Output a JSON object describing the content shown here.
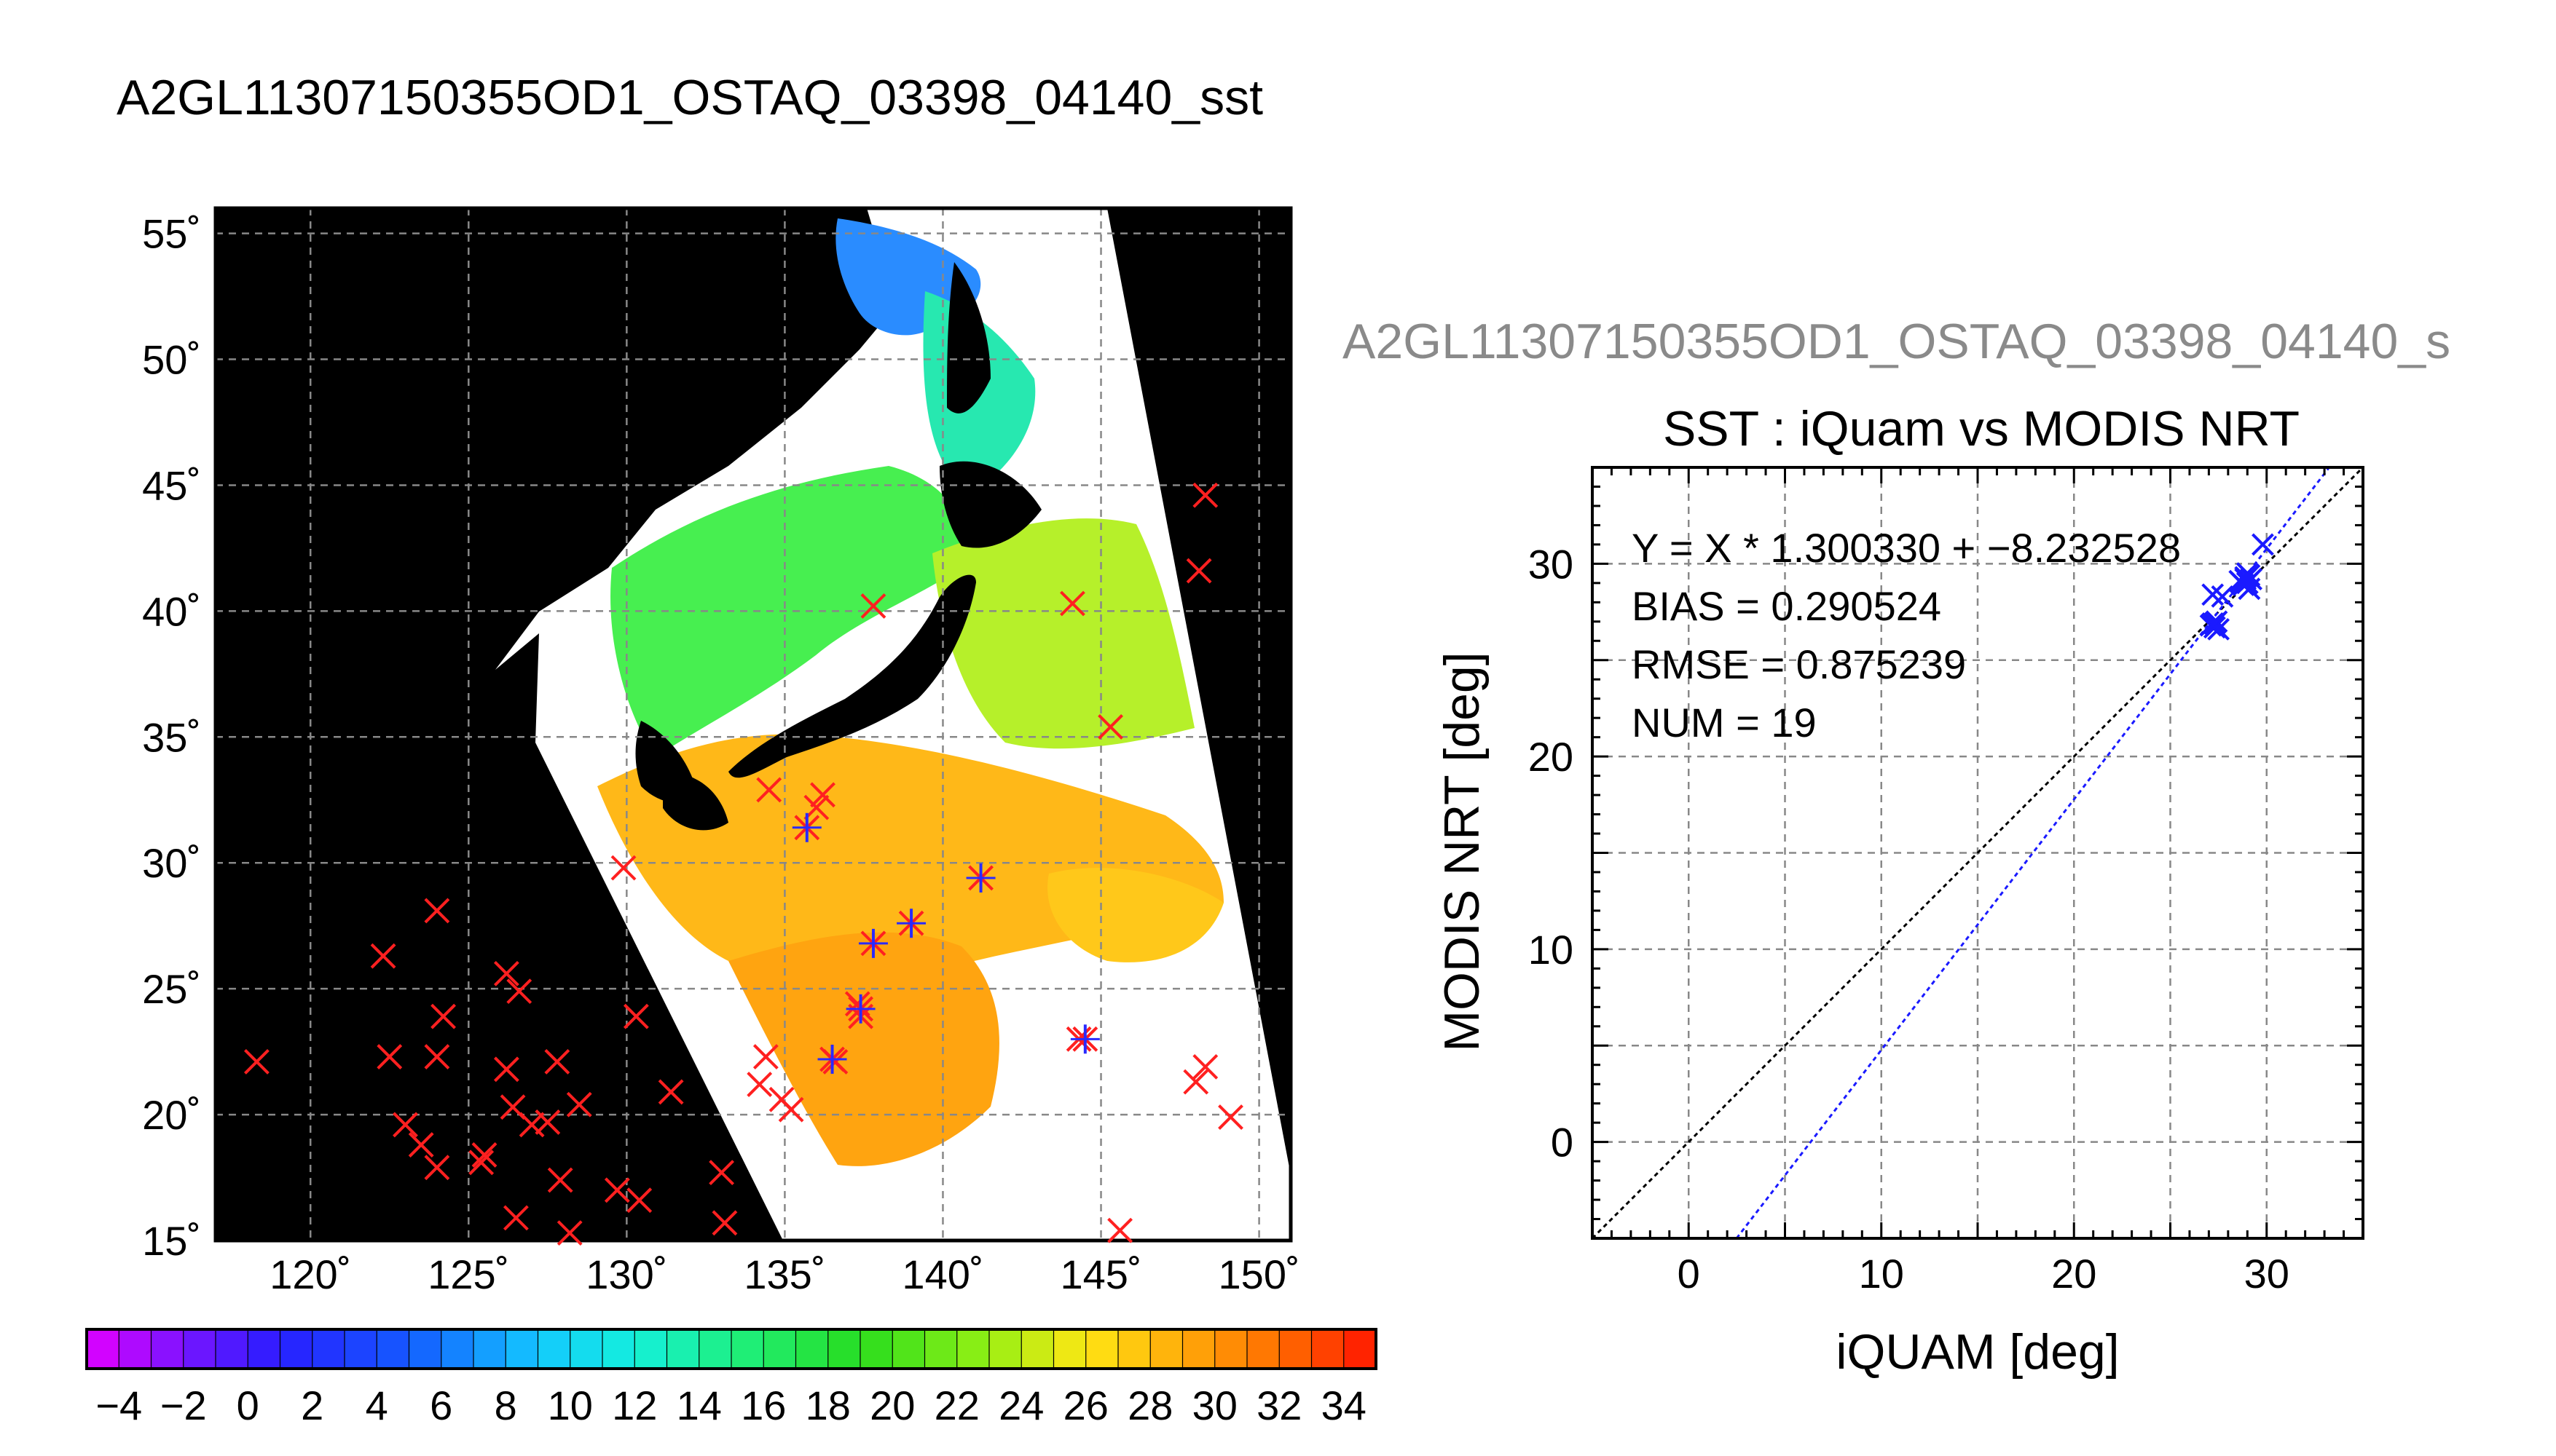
{
  "title": "A2GL11307150355OD1_OSTAQ_03398_04140_sst",
  "scatter_subtitle": "A2GL11307150355OD1_OSTAQ_03398_04140_s",
  "colors": {
    "land": "#000000",
    "no_data": "#ffffff",
    "grid": "#888888",
    "marker_red": "#ff2020",
    "marker_blue": "#2a2aff",
    "one_to_one": "#000000",
    "fit_line": "#1a1aff"
  },
  "chart_data": [
    {
      "type": "heatmap",
      "description_kind": "map",
      "xlim": [
        117,
        151
      ],
      "ylim": [
        15,
        56
      ],
      "x_ticks": [
        120,
        125,
        130,
        135,
        140,
        145,
        150
      ],
      "y_ticks": [
        15,
        20,
        25,
        30,
        35,
        40,
        45,
        50,
        55
      ],
      "x_tick_labels": [
        "120˚",
        "125˚",
        "130˚",
        "135˚",
        "140˚",
        "145˚",
        "150˚"
      ],
      "y_tick_labels": [
        "15˚",
        "20˚",
        "25˚",
        "30˚",
        "35˚",
        "40˚",
        "45˚",
        "50˚",
        "55˚"
      ],
      "grid": true,
      "colorbar": {
        "min": -5,
        "max": 35,
        "tick_labels": [
          "−4",
          "−2",
          "0",
          "2",
          "4",
          "6",
          "8",
          "10",
          "12",
          "14",
          "16",
          "18",
          "20",
          "22",
          "24",
          "26",
          "28",
          "30",
          "32",
          "34"
        ],
        "tick_values": [
          -4,
          -2,
          0,
          2,
          4,
          6,
          8,
          10,
          12,
          14,
          16,
          18,
          20,
          22,
          24,
          26,
          28,
          30,
          32,
          34
        ]
      },
      "matchups_red": [
        [
          118.3,
          22.1
        ],
        [
          122.3,
          26.3
        ],
        [
          122.5,
          22.3
        ],
        [
          124.0,
          28.1
        ],
        [
          124.2,
          23.9
        ],
        [
          124.0,
          22.3
        ],
        [
          123.0,
          19.6
        ],
        [
          123.5,
          18.8
        ],
        [
          124.0,
          17.9
        ],
        [
          125.5,
          18.4
        ],
        [
          125.4,
          18.1
        ],
        [
          126.2,
          25.6
        ],
        [
          126.6,
          24.9
        ],
        [
          126.2,
          21.8
        ],
        [
          126.4,
          20.3
        ],
        [
          127.0,
          19.6
        ],
        [
          127.5,
          19.7
        ],
        [
          127.8,
          22.1
        ],
        [
          127.9,
          17.4
        ],
        [
          128.5,
          20.4
        ],
        [
          126.5,
          15.9
        ],
        [
          128.2,
          15.3
        ],
        [
          129.7,
          17.0
        ],
        [
          130.4,
          16.6
        ],
        [
          130.3,
          23.9
        ],
        [
          131.4,
          20.9
        ],
        [
          133.0,
          17.7
        ],
        [
          133.1,
          15.7
        ],
        [
          134.4,
          22.3
        ],
        [
          134.2,
          21.2
        ],
        [
          134.9,
          20.6
        ],
        [
          135.2,
          20.2
        ],
        [
          134.5,
          32.9
        ],
        [
          136.2,
          32.7
        ],
        [
          136.0,
          32.2
        ],
        [
          129.9,
          29.8
        ],
        [
          137.8,
          40.2
        ],
        [
          144.1,
          40.3
        ],
        [
          145.3,
          35.4
        ],
        [
          148.3,
          44.6
        ],
        [
          148.1,
          41.6
        ],
        [
          148.0,
          21.3
        ],
        [
          148.3,
          21.9
        ],
        [
          149.1,
          19.9
        ],
        [
          145.6,
          15.4
        ],
        [
          137.3,
          24.4
        ],
        [
          137.4,
          23.9
        ],
        [
          136.6,
          22.1
        ],
        [
          144.3,
          23.0
        ]
      ],
      "matchups_star": [
        [
          135.7,
          31.4
        ],
        [
          141.2,
          29.4
        ],
        [
          137.8,
          26.8
        ],
        [
          139.0,
          27.6
        ],
        [
          137.4,
          24.2
        ],
        [
          144.5,
          23.0
        ],
        [
          136.5,
          22.2
        ]
      ]
    },
    {
      "type": "scatter",
      "title": "SST : iQuam vs MODIS NRT",
      "xlabel": "iQUAM [deg]",
      "ylabel": "MODIS NRT [deg]",
      "xlim": [
        -5,
        35
      ],
      "ylim": [
        -5,
        35
      ],
      "x_ticks": [
        0,
        10,
        20,
        30
      ],
      "y_ticks": [
        0,
        10,
        20,
        30
      ],
      "grid": true,
      "stats": {
        "fit": "Y = X * 1.300330 + −8.232528",
        "bias": "BIAS = 0.290524",
        "rmse": "RMSE = 0.875239",
        "num": "NUM = 19"
      },
      "fit_slope": 1.30033,
      "fit_intercept": -8.232528,
      "points": [
        [
          29.8,
          31.0
        ],
        [
          27.2,
          28.4
        ],
        [
          27.7,
          28.3
        ],
        [
          28.6,
          29.1
        ],
        [
          28.9,
          29.3
        ],
        [
          29.1,
          29.4
        ],
        [
          28.8,
          28.9
        ],
        [
          29.0,
          29.0
        ],
        [
          29.2,
          29.2
        ],
        [
          28.7,
          29.0
        ],
        [
          27.1,
          26.8
        ],
        [
          27.3,
          26.7
        ],
        [
          27.4,
          27.0
        ],
        [
          27.2,
          26.9
        ],
        [
          27.5,
          26.6
        ],
        [
          29.1,
          28.7
        ],
        [
          27.3,
          26.9
        ],
        [
          28.9,
          29.2
        ],
        [
          29.0,
          29.5
        ]
      ]
    }
  ]
}
